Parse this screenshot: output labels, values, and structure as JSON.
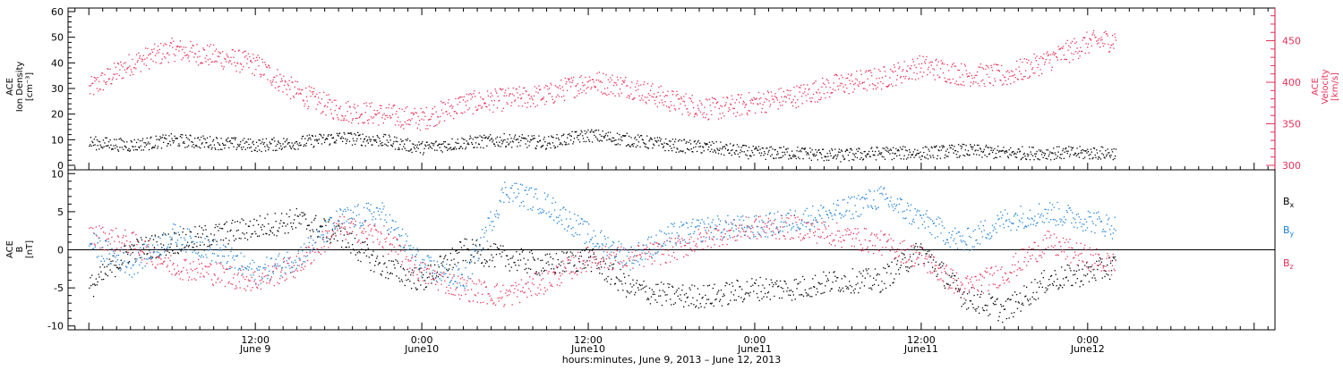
{
  "chart_data": [
    {
      "type": "scatter",
      "panel": "top",
      "ylabel_left": [
        "ACE",
        "Ion Density",
        "[cm⁻³]"
      ],
      "ylabel_right": [
        "ACE",
        "Velocity",
        "[km/s]"
      ],
      "ylim_left": [
        0,
        60
      ],
      "ylim_right": [
        300,
        485
      ],
      "yticks_left": [
        "0",
        "10",
        "20",
        "30",
        "40",
        "50",
        "60"
      ],
      "yticks_right": [
        "300",
        "350",
        "400",
        "450"
      ],
      "colors": {
        "density": "#000000",
        "velocity": "#e8315a"
      },
      "series": [
        {
          "name": "ACE Ion Density",
          "axis": "left",
          "x_hours": [
            0,
            3,
            6,
            9,
            12,
            15,
            18,
            21,
            24,
            27,
            30,
            33,
            36,
            39,
            42,
            45,
            48,
            51,
            54,
            57,
            60,
            63,
            66,
            69,
            72,
            74
          ],
          "values": [
            9,
            8,
            10,
            9,
            8,
            9,
            11,
            10,
            7,
            9,
            10,
            9,
            12,
            10,
            8,
            7,
            5,
            5,
            4,
            5,
            5,
            6,
            5,
            5,
            5,
            5
          ]
        },
        {
          "name": "ACE Velocity",
          "axis": "right",
          "x_hours": [
            0,
            3,
            6,
            9,
            12,
            15,
            18,
            21,
            24,
            27,
            30,
            33,
            36,
            39,
            42,
            45,
            48,
            51,
            54,
            57,
            60,
            63,
            66,
            69,
            72,
            74
          ],
          "values": [
            392,
            423,
            440,
            432,
            422,
            388,
            367,
            362,
            356,
            375,
            380,
            385,
            402,
            395,
            378,
            368,
            376,
            384,
            398,
            405,
            420,
            410,
            408,
            426,
            448,
            452
          ]
        }
      ]
    },
    {
      "type": "scatter",
      "panel": "bottom",
      "ylabel_left": [
        "ACE",
        "B",
        "[nT]"
      ],
      "ylim": [
        -10.5,
        10.5
      ],
      "yticks": [
        "-10",
        "-5",
        "0",
        "5",
        "10"
      ],
      "colors": {
        "Bx": "#000000",
        "By": "#1e82d8",
        "Bz": "#e8315a"
      },
      "series": [
        {
          "name": "Bx",
          "x_hours": [
            0,
            3,
            6,
            9,
            12,
            15,
            18,
            21,
            24,
            27,
            30,
            33,
            36,
            39,
            42,
            45,
            48,
            51,
            54,
            57,
            60,
            63,
            66,
            69,
            72,
            74
          ],
          "values": [
            -5,
            0,
            1,
            2,
            3,
            4,
            2,
            -2,
            -4,
            0,
            -1,
            -2,
            -1,
            -5,
            -6,
            -6,
            -5,
            -5,
            -4,
            -4,
            0,
            -6,
            -8,
            -4,
            -3,
            -2
          ]
        },
        {
          "name": "By",
          "x_hours": [
            0,
            3,
            6,
            9,
            12,
            15,
            18,
            21,
            24,
            27,
            30,
            33,
            36,
            39,
            42,
            45,
            48,
            51,
            54,
            57,
            60,
            63,
            66,
            69,
            72,
            74
          ],
          "values": [
            1,
            -2,
            2,
            0,
            -3,
            -1,
            4,
            5,
            -2,
            -4,
            8,
            6,
            2,
            -1,
            2,
            3,
            3,
            4,
            5,
            7,
            4,
            1,
            4,
            5,
            4,
            3
          ]
        },
        {
          "name": "Bz",
          "x_hours": [
            0,
            3,
            6,
            9,
            12,
            15,
            18,
            21,
            24,
            27,
            30,
            33,
            36,
            39,
            42,
            45,
            48,
            51,
            54,
            57,
            60,
            63,
            66,
            69,
            72,
            74
          ],
          "values": [
            2,
            1,
            -2,
            -3,
            -4,
            -2,
            3,
            2,
            -3,
            -5,
            -6,
            -4,
            -1,
            -1,
            0,
            2,
            3,
            3,
            2,
            1,
            -1,
            -5,
            -3,
            1,
            -1,
            -2
          ]
        }
      ]
    }
  ],
  "legend_bottom": [
    {
      "base": "B",
      "sub": "x",
      "color": "#000000"
    },
    {
      "base": "B",
      "sub": "y",
      "color": "#1e82d8"
    },
    {
      "base": "B",
      "sub": "z",
      "color": "#e8315a"
    }
  ],
  "x_axis": {
    "range_hours": [
      -1.5,
      85.5
    ],
    "label": "hours:minutes,  June  9, 2013 – June 12, 2013",
    "major_ticks": [
      {
        "hour": 12,
        "time": "12:00",
        "date": "June 9"
      },
      {
        "hour": 24,
        "time": "0:00",
        "date": "June10"
      },
      {
        "hour": 36,
        "time": "12:00",
        "date": "June10"
      },
      {
        "hour": 48,
        "time": "0:00",
        "date": "June11"
      },
      {
        "hour": 60,
        "time": "12:00",
        "date": "June11"
      },
      {
        "hour": 72,
        "time": "0:00",
        "date": "June12"
      }
    ]
  }
}
